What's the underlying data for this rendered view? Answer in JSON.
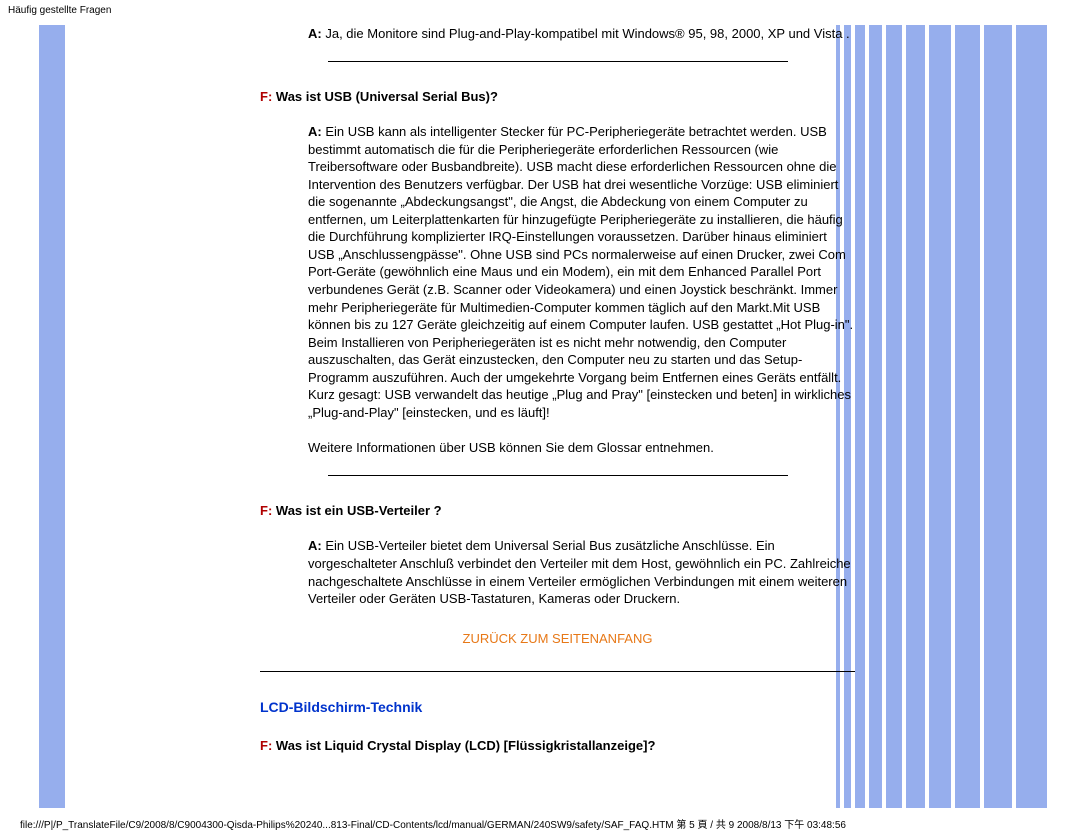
{
  "header": {
    "title": "Häufig gestellte Fragen"
  },
  "footer": {
    "path": "file:///P|/P_TranslateFile/C9/2008/8/C9004300-Qisda-Philips%20240...813-Final/CD-Contents/lcd/manual/GERMAN/240SW9/safety/SAF_FAQ.HTM 第 5 頁 / 共 9 2008/8/13 下午 03:48:56"
  },
  "left_bar": {
    "color": "#96aeed"
  },
  "right_bars": {
    "widths": [
      4,
      7,
      10,
      13,
      16,
      19,
      22,
      25,
      28,
      31
    ],
    "color": "#96aeed",
    "bg": "#ffffff"
  },
  "qa": {
    "items": [
      {
        "a_label": "A:",
        "answer": "Ja, die Monitore sind Plug-and-Play-kompatibel mit Windows® 95, 98, 2000, XP und Vista .",
        "hr_after": true
      },
      {
        "f_prefix": "F:",
        "question": "Was ist USB (Universal Serial Bus)?",
        "a_label": "A:",
        "answer": "Ein USB kann als intelligenter Stecker für PC-Peripheriegeräte betrachtet werden. USB bestimmt automatisch die für die Peripheriegeräte erforderlichen Ressourcen (wie Treibersoftware oder Busbandbreite). USB macht diese erforderlichen Ressourcen ohne die Intervention des Benutzers verfügbar. Der USB hat drei wesentliche Vorzüge: USB eliminiert die sogenannte „Abdeckungsangst\", die Angst, die Abdeckung von einem Computer zu entfernen, um Leiterplattenkarten für hinzugefügte Peripheriegeräte zu installieren, die häufig die Durchführung komplizierter IRQ-Einstellungen voraussetzen. Darüber hinaus eliminiert USB „Anschlussengpässe\". Ohne USB sind PCs normalerweise auf einen Drucker, zwei Com Port-Geräte (gewöhnlich eine Maus und ein Modem), ein mit dem Enhanced Parallel Port verbundenes Gerät (z.B. Scanner oder Videokamera) und einen Joystick beschränkt. Immer mehr Peripheriegeräte für Multimedien-Computer kommen täglich auf den Markt.Mit USB können bis zu 127 Geräte gleichzeitig auf einem Computer laufen. USB gestattet „Hot Plug-in\". Beim Installieren von Peripheriegeräten ist es nicht mehr notwendig, den Computer auszuschalten, das Gerät einzustecken, den Computer neu zu starten und das Setup-Programm auszuführen. Auch der umgekehrte Vorgang beim Entfernen eines Geräts entfällt. Kurz gesagt: USB verwandelt das heutige „Plug and Pray\" [einstecken und beten] in wirkliches „Plug-and-Play\" [einstecken, und es läuft]!",
        "extra": "Weitere Informationen über USB können Sie dem Glossar entnehmen.",
        "hr_after": true
      },
      {
        "f_prefix": "F:",
        "question": "Was ist ein USB-Verteiler ?",
        "a_label": "A:",
        "answer": "Ein USB-Verteiler bietet dem Universal Serial Bus zusätzliche Anschlüsse. Ein vorgeschalteter Anschluß verbindet den Verteiler mit dem Host, gewöhnlich ein PC. Zahlreiche nachgeschaltete Anschlüsse in einem Verteiler ermöglichen Verbindungen mit einem weiteren Verteiler oder Geräten USB-Tastaturen, Kameras oder Druckern."
      }
    ]
  },
  "back_link": {
    "label": "ZURÜCK ZUM SEITENANFANG"
  },
  "section": {
    "title": "LCD-Bildschirm-Technik",
    "q_prefix": "F:",
    "question": "Was ist Liquid Crystal Display (LCD) [Flüssigkristallanzeige]?"
  }
}
